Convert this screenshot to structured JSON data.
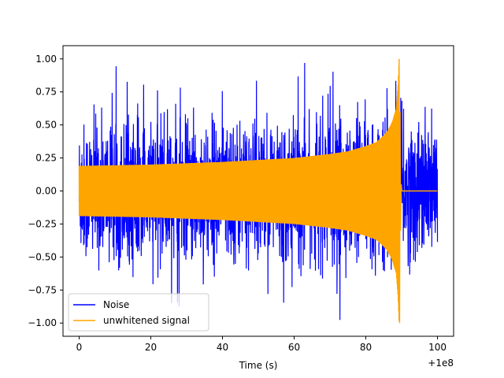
{
  "chart_data": {
    "type": "line",
    "title": "",
    "xlabel": "Time (s)",
    "ylabel": "",
    "x_offset_label": "+1e8",
    "xlim": [
      -4.5,
      104.5
    ],
    "ylim": [
      -1.1,
      1.1
    ],
    "x_ticks": [
      0,
      20,
      40,
      60,
      80,
      100
    ],
    "x_tick_labels": [
      "0",
      "20",
      "40",
      "60",
      "80",
      "100"
    ],
    "y_ticks": [
      -1.0,
      -0.75,
      -0.5,
      -0.25,
      0.0,
      0.25,
      0.5,
      0.75,
      1.0
    ],
    "y_tick_labels": [
      "−1.00",
      "−0.75",
      "−0.50",
      "−0.25",
      "0.00",
      "0.25",
      "0.50",
      "0.75",
      "1.00"
    ],
    "grid": false,
    "legend": {
      "placement": "lower-left",
      "entries": [
        "Noise",
        "unwhitened signal"
      ]
    },
    "series": [
      {
        "name": "Noise",
        "color": "#0000ff",
        "x_range": [
          0,
          100
        ],
        "typical_amplitude": 0.4,
        "peak_amplitude": 1.0,
        "min_value": -0.98,
        "max_value": 0.98
      },
      {
        "name": "unwhitened signal",
        "color": "#ffa500",
        "x": [
          0,
          10,
          20,
          30,
          40,
          50,
          60,
          70,
          75,
          80,
          83,
          85,
          86,
          87,
          87.5,
          88,
          88.5,
          89,
          89.3
        ],
        "envelope": [
          0.19,
          0.195,
          0.2,
          0.21,
          0.22,
          0.235,
          0.25,
          0.28,
          0.3,
          0.34,
          0.37,
          0.42,
          0.45,
          0.5,
          0.53,
          0.58,
          0.62,
          0.8,
          1.0
        ],
        "merger_time": 89.3,
        "ringdown_end": 100
      }
    ]
  }
}
